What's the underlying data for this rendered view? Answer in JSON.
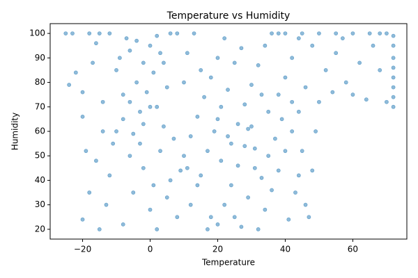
{
  "chart_data": {
    "type": "scatter",
    "title": "Temperature vs Humidity",
    "x_label": "Temperature",
    "y_label": "Humidity",
    "color": "#1f77b4",
    "x": [
      -10,
      -8,
      -6,
      -4,
      -2,
      0,
      2,
      4,
      -9,
      -7,
      -5,
      -3,
      -1,
      1,
      3,
      5,
      -10,
      -6,
      -2,
      2,
      0,
      -8,
      4,
      -4,
      10,
      12,
      14,
      16,
      18,
      20,
      22,
      24,
      26,
      28,
      30,
      32,
      34,
      11,
      15,
      19,
      23,
      27,
      31,
      35,
      13,
      17,
      21,
      25,
      29,
      33,
      10,
      20,
      20,
      22,
      24,
      26,
      28,
      30,
      32,
      34,
      36,
      38,
      40,
      42,
      44,
      21,
      25,
      29,
      33,
      37,
      41,
      43,
      39,
      35,
      27,
      31,
      23,
      44,
      -25,
      -23,
      -18,
      -15,
      -12,
      6,
      8,
      36,
      38,
      40,
      45,
      50,
      55,
      60,
      65,
      68,
      70,
      72,
      72,
      72,
      72,
      72,
      72,
      72,
      72,
      -20,
      -18,
      -16,
      -14,
      -20,
      -17,
      -13,
      -11,
      -19,
      -15,
      -24,
      -22,
      -12,
      -14,
      -16,
      -20,
      -8,
      -5,
      -2,
      0,
      3,
      6,
      8,
      -6,
      2,
      5,
      7,
      9,
      -3,
      1,
      12,
      15,
      18,
      14,
      17,
      11,
      46,
      48,
      49,
      47,
      45,
      38,
      40,
      42,
      46,
      48,
      50,
      52,
      55,
      58,
      60,
      62,
      64,
      66,
      68,
      70,
      54,
      57,
      44,
      42
    ],
    "values": [
      60,
      65,
      72,
      80,
      88,
      95,
      70,
      62,
      90,
      98,
      59,
      68,
      76,
      84,
      92,
      78,
      85,
      93,
      63,
      99,
      70,
      75,
      88,
      97,
      50,
      58,
      66,
      74,
      82,
      90,
      98,
      55,
      63,
      71,
      79,
      87,
      95,
      92,
      85,
      60,
      77,
      94,
      53,
      68,
      100,
      52,
      70,
      88,
      61,
      75,
      80,
      65,
      22,
      30,
      38,
      46,
      54,
      62,
      20,
      28,
      36,
      44,
      52,
      60,
      68,
      48,
      25,
      33,
      41,
      57,
      24,
      35,
      65,
      50,
      21,
      45,
      58,
      42,
      100,
      100,
      100,
      100,
      100,
      100,
      100,
      100,
      100,
      100,
      100,
      100,
      100,
      100,
      100,
      100,
      100,
      70,
      74,
      78,
      82,
      86,
      90,
      95,
      99,
      24,
      35,
      48,
      60,
      76,
      88,
      30,
      55,
      52,
      20,
      79,
      84,
      42,
      72,
      96,
      66,
      22,
      35,
      45,
      28,
      52,
      40,
      25,
      50,
      20,
      33,
      57,
      44,
      55,
      38,
      30,
      42,
      25,
      38,
      20,
      45,
      30,
      44,
      60,
      25,
      52,
      75,
      82,
      90,
      78,
      95,
      72,
      85,
      92,
      80,
      75,
      88,
      73,
      95,
      85,
      72,
      76,
      98,
      98,
      72
    ],
    "xlim": [
      -29.6,
      76
    ],
    "ylim": [
      16,
      104
    ],
    "xticks": [
      {
        "value": -20,
        "label": "−20"
      },
      0,
      20,
      40,
      60
    ],
    "yticks": [
      20,
      30,
      40,
      50,
      60,
      70,
      80,
      90,
      100
    ]
  }
}
